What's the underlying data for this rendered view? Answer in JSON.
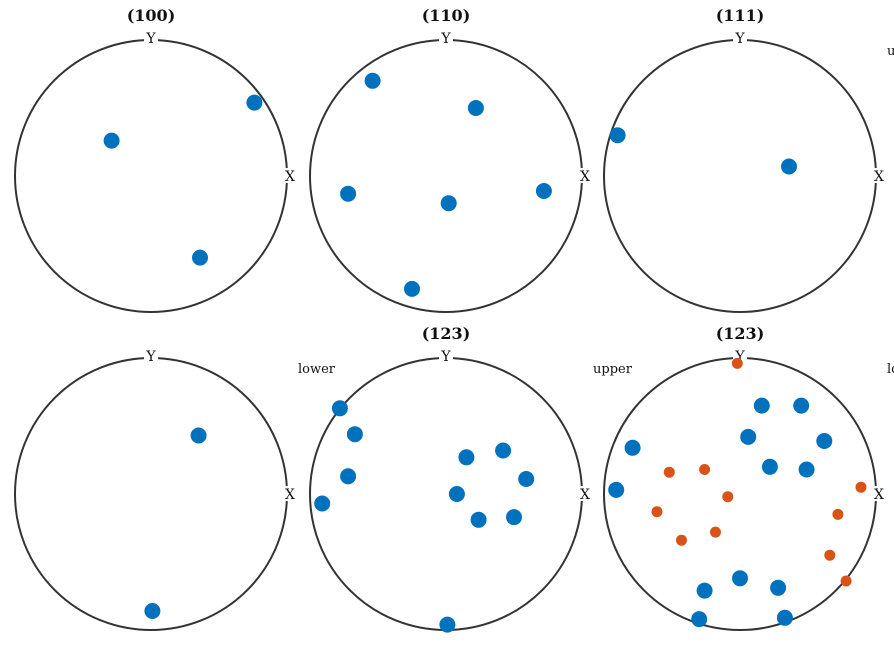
{
  "colors": {
    "circle": "#333333",
    "primary_marker": "#0072BD",
    "secondary_marker": "#D95319"
  },
  "axis_labels": {
    "x": "X",
    "y": "Y"
  },
  "chart_data": [
    {
      "type": "scatter",
      "projection": "stereographic",
      "title": "(100)",
      "hemisphere": "",
      "series": [
        {
          "color": "#0072BD",
          "marker_size": "large",
          "points": [
            [
              0.76,
              0.54
            ],
            [
              -0.29,
              0.26
            ],
            [
              0.36,
              -0.6
            ]
          ]
        }
      ]
    },
    {
      "type": "scatter",
      "projection": "stereographic",
      "title": "(110)",
      "hemisphere": "",
      "series": [
        {
          "color": "#0072BD",
          "marker_size": "large",
          "points": [
            [
              -0.54,
              0.7
            ],
            [
              0.22,
              0.5
            ],
            [
              -0.72,
              -0.13
            ],
            [
              0.02,
              -0.2
            ],
            [
              0.72,
              -0.11
            ],
            [
              -0.25,
              -0.83
            ]
          ]
        }
      ]
    },
    {
      "type": "scatter",
      "projection": "stereographic",
      "title": "(111)",
      "hemisphere": "upper",
      "series": [
        {
          "color": "#0072BD",
          "marker_size": "large",
          "points": [
            [
              -0.9,
              0.3
            ],
            [
              0.36,
              0.07
            ]
          ]
        }
      ]
    },
    {
      "type": "scatter",
      "projection": "stereographic",
      "title": "",
      "hemisphere": "lower",
      "series": [
        {
          "color": "#0072BD",
          "marker_size": "large",
          "points": [
            [
              0.35,
              0.43
            ],
            [
              0.01,
              -0.86
            ]
          ]
        }
      ]
    },
    {
      "type": "scatter",
      "projection": "stereographic",
      "title": "(123)",
      "hemisphere": "upper",
      "series": [
        {
          "color": "#0072BD",
          "marker_size": "large",
          "points": [
            [
              -0.78,
              0.63
            ],
            [
              -0.67,
              0.44
            ],
            [
              -0.72,
              0.13
            ],
            [
              -0.91,
              -0.07
            ],
            [
              0.15,
              0.27
            ],
            [
              0.42,
              0.32
            ],
            [
              0.59,
              0.11
            ],
            [
              0.08,
              0.0
            ],
            [
              0.24,
              -0.19
            ],
            [
              0.5,
              -0.17
            ],
            [
              0.01,
              -0.96
            ]
          ]
        }
      ]
    },
    {
      "type": "scatter",
      "projection": "stereographic",
      "title": "(123)",
      "hemisphere": "lower",
      "series": [
        {
          "color": "#0072BD",
          "marker_size": "large",
          "points": [
            [
              0.16,
              0.65
            ],
            [
              0.45,
              0.65
            ],
            [
              0.06,
              0.42
            ],
            [
              0.62,
              0.39
            ],
            [
              0.22,
              0.2
            ],
            [
              0.49,
              0.18
            ],
            [
              -0.79,
              0.34
            ],
            [
              -0.91,
              0.03
            ],
            [
              -0.26,
              -0.71
            ],
            [
              0.0,
              -0.62
            ],
            [
              0.28,
              -0.69
            ],
            [
              -0.3,
              -0.92
            ],
            [
              0.33,
              -0.91
            ]
          ]
        },
        {
          "color": "#D95319",
          "marker_size": "small",
          "points": [
            [
              -0.02,
              0.96
            ],
            [
              -0.52,
              0.16
            ],
            [
              -0.26,
              0.18
            ],
            [
              -0.09,
              -0.02
            ],
            [
              -0.61,
              -0.13
            ],
            [
              -0.43,
              -0.34
            ],
            [
              -0.18,
              -0.28
            ],
            [
              0.89,
              0.05
            ],
            [
              0.72,
              -0.15
            ],
            [
              0.66,
              -0.45
            ],
            [
              0.78,
              -0.64
            ]
          ]
        }
      ]
    }
  ]
}
